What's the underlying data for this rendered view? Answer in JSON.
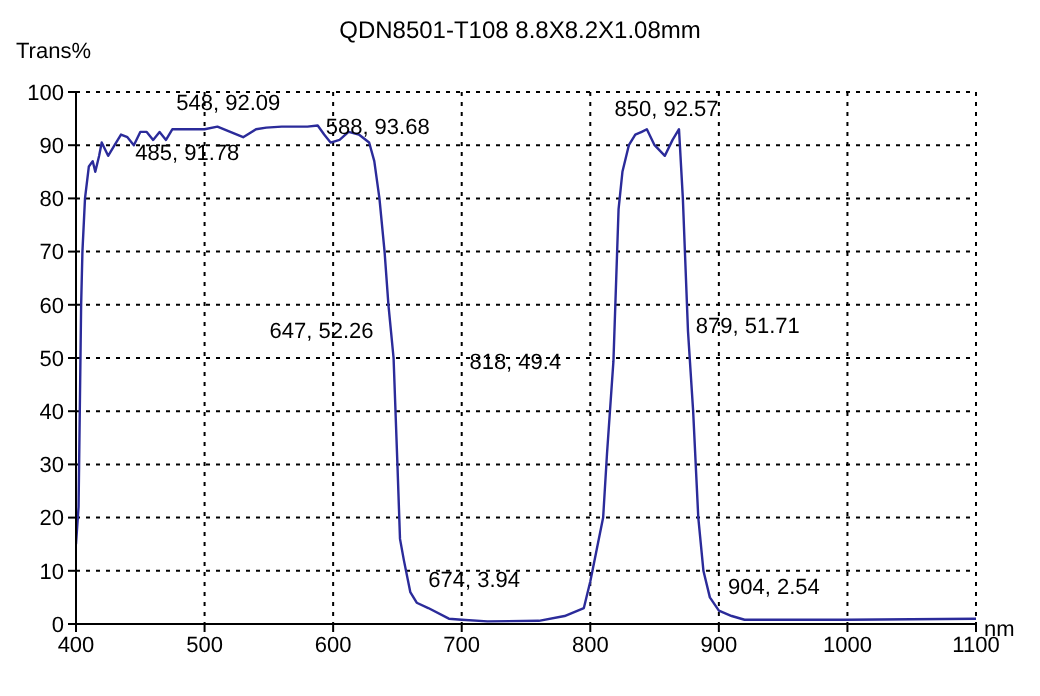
{
  "chart_data": {
    "type": "line",
    "title": "QDN8501-T108  8.8X8.2X1.08mm",
    "xlabel": "nm",
    "ylabel": "Trans%",
    "xlim": [
      400,
      1100
    ],
    "xticks": [
      400,
      500,
      600,
      700,
      800,
      900,
      1000,
      1100
    ],
    "ylim": [
      0,
      100
    ],
    "yticks": [
      0,
      10,
      20,
      30,
      40,
      50,
      60,
      70,
      80,
      90,
      100
    ],
    "grid": true,
    "marker": "none",
    "line_style": "solid",
    "legend": false,
    "x": [
      400,
      402,
      404,
      405,
      407,
      410,
      413,
      415,
      418,
      420,
      425,
      430,
      435,
      440,
      445,
      450,
      455,
      460,
      465,
      470,
      475,
      485,
      500,
      510,
      520,
      530,
      540,
      548,
      560,
      580,
      588,
      593,
      598,
      605,
      612,
      620,
      628,
      632,
      636,
      640,
      643,
      645,
      647,
      650,
      652,
      655,
      660,
      665,
      674,
      690,
      700,
      720,
      760,
      780,
      795,
      800,
      805,
      810,
      813,
      818,
      822,
      825,
      830,
      835,
      840,
      844,
      850,
      858,
      864,
      869,
      872,
      876,
      880,
      884,
      888,
      893,
      900,
      910,
      920,
      1000,
      1100
    ],
    "series": [
      {
        "color": "#2b2b9a",
        "values": [
          15,
          22,
          60,
          70,
          80,
          86,
          87,
          85,
          88,
          90.5,
          88,
          90,
          92,
          91.5,
          90,
          92.5,
          92.5,
          91,
          92.5,
          91,
          93,
          93,
          93,
          93.5,
          92.5,
          91.5,
          93,
          93.3,
          93.5,
          93.5,
          93.7,
          92,
          90.5,
          91,
          92.5,
          92,
          90.5,
          87,
          80,
          70,
          60,
          55,
          50,
          30,
          16,
          12,
          6,
          4,
          3,
          1,
          0.8,
          0.5,
          0.6,
          1.5,
          3,
          8,
          14,
          20,
          32,
          49.4,
          78,
          85,
          90,
          92,
          92.5,
          93,
          90,
          88,
          91,
          93,
          80,
          55,
          40,
          20,
          10,
          5,
          2.5,
          1.5,
          0.8,
          0.8,
          1
        ]
      }
    ],
    "annotations": [
      {
        "text": "485, 91.78",
        "x": 485,
        "y": 91.78
      },
      {
        "text": "548, 92.09",
        "x": 548,
        "y": 92.09
      },
      {
        "text": "588, 93.68",
        "x": 588,
        "y": 93.68
      },
      {
        "text": "647, 52.26",
        "x": 647,
        "y": 52.26
      },
      {
        "text": "674, 3.94",
        "x": 674,
        "y": 3.94
      },
      {
        "text": "818, 49.4",
        "x": 818,
        "y": 49.4
      },
      {
        "text": "850, 92.57",
        "x": 850,
        "y": 92.57
      },
      {
        "text": "879, 51.71",
        "x": 879,
        "y": 51.71
      },
      {
        "text": "904, 2.54",
        "x": 904,
        "y": 2.54
      }
    ]
  }
}
